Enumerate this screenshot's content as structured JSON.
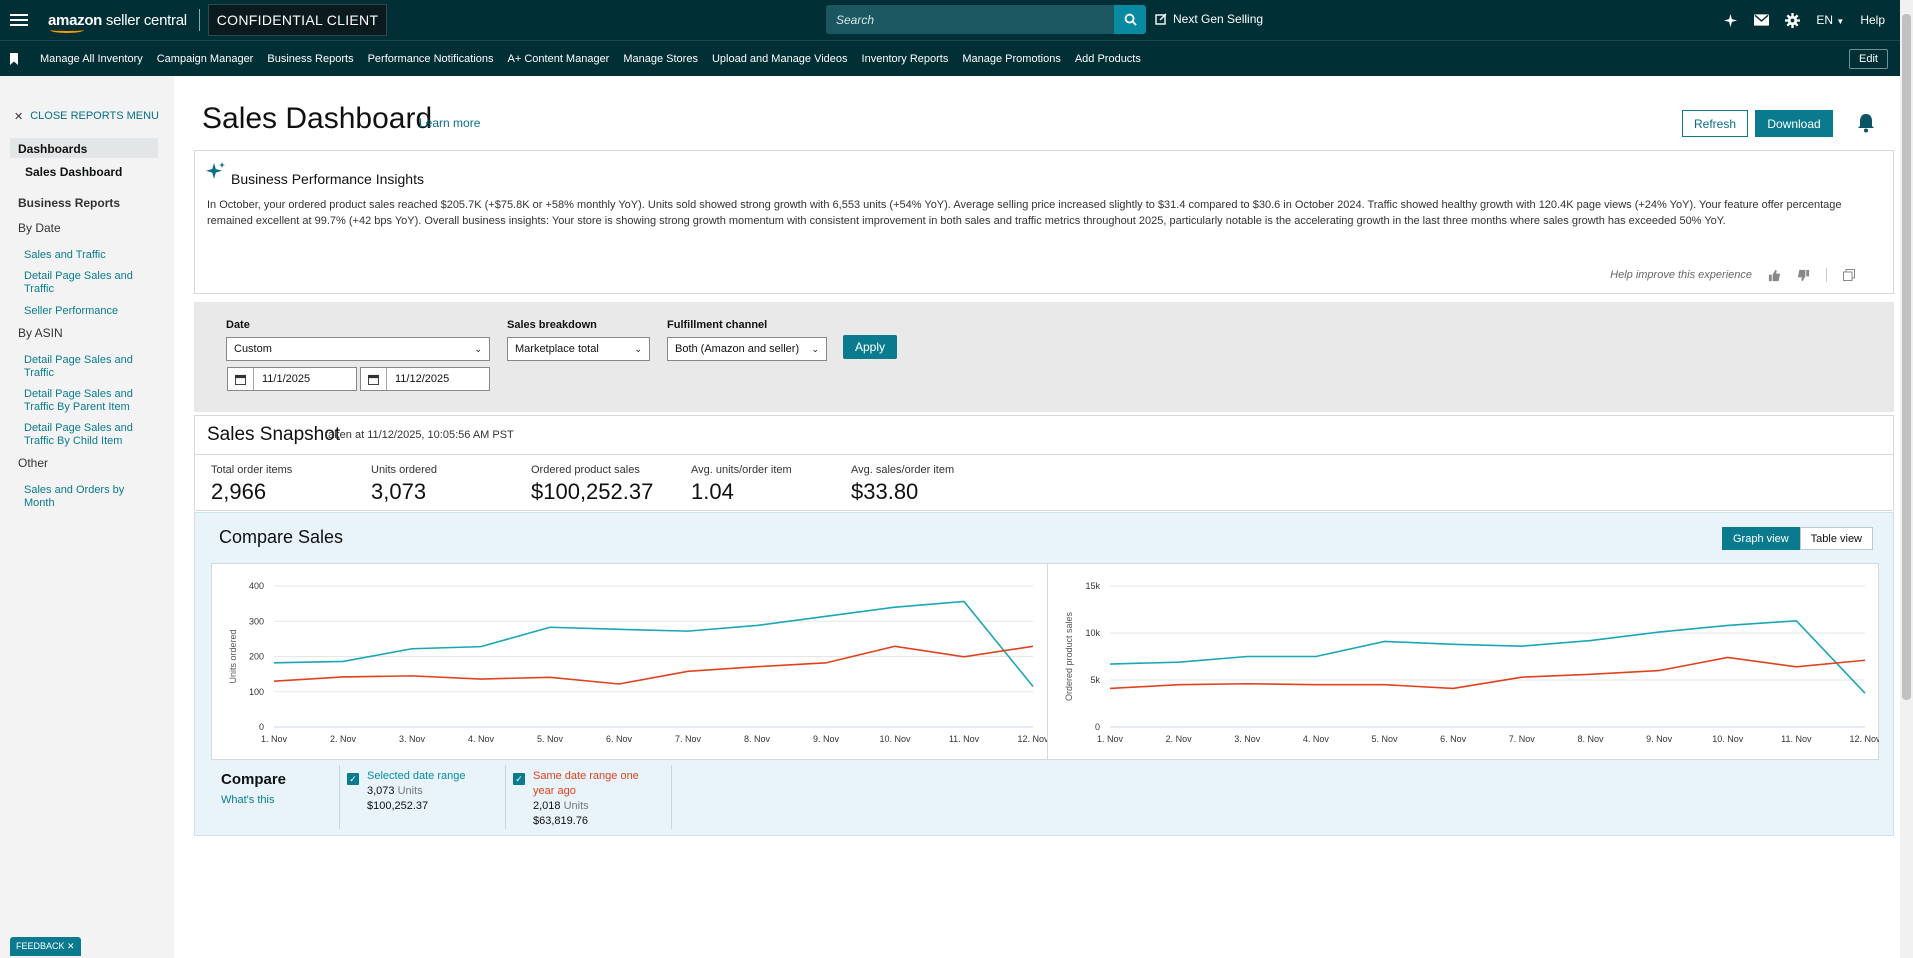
{
  "topbar": {
    "brand_bold": "amazon",
    "brand_rest": " seller central",
    "client_label": "CONFIDENTIAL CLIENT",
    "search_placeholder": "Search",
    "next_gen": "Next Gen Selling",
    "language": "EN",
    "help": "Help"
  },
  "navbar": {
    "items": [
      "Manage All Inventory",
      "Campaign Manager",
      "Business Reports",
      "Performance Notifications",
      "A+ Content Manager",
      "Manage Stores",
      "Upload and Manage Videos",
      "Inventory Reports",
      "Manage Promotions",
      "Add Products"
    ],
    "edit": "Edit"
  },
  "sidebar": {
    "close": "CLOSE REPORTS MENU",
    "dashboards": "Dashboards",
    "sales_dashboard": "Sales Dashboard",
    "business_reports": "Business Reports",
    "by_date": "By Date",
    "by_date_links": [
      "Sales and Traffic",
      "Detail Page Sales and Traffic",
      "Seller Performance"
    ],
    "by_asin": "By ASIN",
    "by_asin_links": [
      "Detail Page Sales and Traffic",
      "Detail Page Sales and Traffic By Parent Item",
      "Detail Page Sales and Traffic By Child Item"
    ],
    "other": "Other",
    "other_links": [
      "Sales and Orders by Month"
    ]
  },
  "page": {
    "title": "Sales Dashboard",
    "learn_more": "Learn more",
    "refresh": "Refresh",
    "download": "Download"
  },
  "insights": {
    "title": "Business Performance Insights",
    "text": "In October, your ordered product sales reached $205.7K (+$75.8K or +58% monthly YoY). Units sold showed strong growth with 6,553 units (+54% YoY). Average selling price increased slightly to $31.4 compared to $30.6 in October 2024. Traffic showed healthy growth with 120.4K page views (+24% YoY). Your feature offer percentage remained excellent at 99.7% (+42 bps YoY). Overall business insights: Your store is showing strong growth momentum with consistent improvement in both sales and traffic metrics throughout 2025, particularly notable is the accelerating growth in the last three months where sales growth has exceeded 50% YoY.",
    "help": "Help improve this experience"
  },
  "filters": {
    "date_label": "Date",
    "date_value": "Custom",
    "start": "11/1/2025",
    "end": "11/12/2025",
    "breakdown_label": "Sales breakdown",
    "breakdown_value": "Marketplace total",
    "channel_label": "Fulfillment channel",
    "channel_value": "Both (Amazon and seller)",
    "apply": "Apply"
  },
  "snapshot": {
    "title": "Sales Snapshot",
    "taken": "taken at 11/12/2025, 10:05:56 AM PST",
    "metrics": [
      {
        "label": "Total order items",
        "value": "2,966"
      },
      {
        "label": "Units ordered",
        "value": "3,073"
      },
      {
        "label": "Ordered product sales",
        "value": "$100,252.37"
      },
      {
        "label": "Avg. units/order item",
        "value": "1.04"
      },
      {
        "label": "Avg. sales/order item",
        "value": "$33.80"
      }
    ]
  },
  "compare": {
    "title": "Compare Sales",
    "graph_view": "Graph view",
    "table_view": "Table view",
    "legend_title": "Compare",
    "whats_this": "What's this",
    "selected": {
      "label": "Selected date range",
      "units": "3,073",
      "units_word": "Units",
      "sales": "$100,252.37"
    },
    "prior": {
      "label": "Same date range one year ago",
      "units": "2,018",
      "units_word": "Units",
      "sales": "$63,819.76"
    }
  },
  "colors": {
    "current": "#1aa6b7",
    "prior": "#e0421e"
  },
  "chart_data": [
    {
      "type": "line",
      "ylabel": "Units ordered",
      "ylim": [
        0,
        400
      ],
      "yticks": [
        "0",
        "100",
        "200",
        "300",
        "400"
      ],
      "categories": [
        "1. Nov",
        "2. Nov",
        "3. Nov",
        "4. Nov",
        "5. Nov",
        "6. Nov",
        "7. Nov",
        "8. Nov",
        "9. Nov",
        "10. Nov",
        "11. Nov",
        "12. Nov"
      ],
      "series": [
        {
          "values": [
            182,
            186,
            222,
            228,
            283,
            277,
            272,
            288,
            314,
            340,
            356,
            115
          ]
        },
        {
          "values": [
            130,
            142,
            145,
            136,
            141,
            122,
            158,
            171,
            182,
            229,
            199,
            229
          ]
        }
      ]
    },
    {
      "type": "line",
      "ylabel": "Ordered product sales",
      "ylim": [
        0,
        15000
      ],
      "yticks": [
        "0",
        "5k",
        "10k",
        "15k"
      ],
      "categories": [
        "1. Nov",
        "2. Nov",
        "3. Nov",
        "4. Nov",
        "5. Nov",
        "6. Nov",
        "7. Nov",
        "8. Nov",
        "9. Nov",
        "10. Nov",
        "11. Nov",
        "12. Nov"
      ],
      "series": [
        {
          "values": [
            6700,
            6900,
            7500,
            7500,
            9100,
            8800,
            8600,
            9200,
            10100,
            10800,
            11300,
            3600
          ]
        },
        {
          "values": [
            4100,
            4500,
            4600,
            4500,
            4500,
            4100,
            5300,
            5600,
            6000,
            7400,
            6400,
            7100
          ]
        }
      ]
    }
  ]
}
